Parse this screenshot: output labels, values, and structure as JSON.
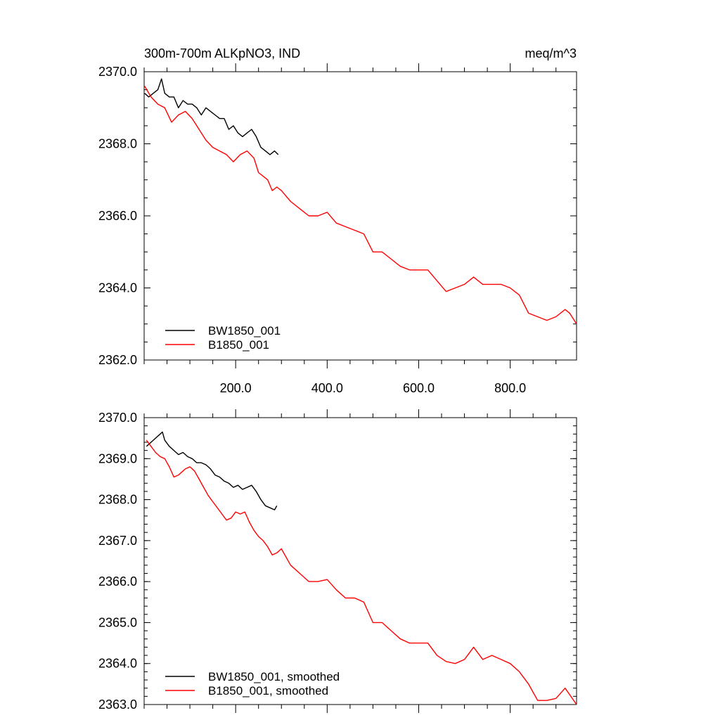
{
  "chart_data": [
    {
      "type": "line",
      "title": "300m-700m ALKpNO3, IND",
      "units": "meq/m^3",
      "xlim": [
        0,
        945
      ],
      "ylim": [
        2362.0,
        2370.0
      ],
      "x_ticks": [
        200.0,
        400.0,
        600.0,
        800.0
      ],
      "x_tick_labels": [
        "200.0",
        "400.0",
        "600.0",
        "800.0"
      ],
      "y_ticks": [
        2362.0,
        2364.0,
        2366.0,
        2368.0,
        2370.0
      ],
      "y_tick_labels": [
        "2362.0",
        "2364.0",
        "2366.0",
        "2368.0",
        "2370.0"
      ],
      "legend_position": "bottom-left",
      "series": [
        {
          "name": "BW1850_001",
          "color": "#000000",
          "x": [
            1,
            10,
            20,
            30,
            38,
            45,
            55,
            65,
            75,
            85,
            95,
            105,
            115,
            125,
            135,
            145,
            155,
            165,
            175,
            185,
            195,
            205,
            215,
            225,
            235,
            245,
            255,
            265,
            275,
            285,
            293
          ],
          "y": [
            2369.4,
            2369.3,
            2369.4,
            2369.5,
            2369.8,
            2369.4,
            2369.3,
            2369.3,
            2369.0,
            2369.2,
            2369.1,
            2369.1,
            2369.0,
            2368.8,
            2369.0,
            2368.9,
            2368.8,
            2368.7,
            2368.7,
            2368.4,
            2368.5,
            2368.3,
            2368.2,
            2368.3,
            2368.4,
            2368.2,
            2367.9,
            2367.8,
            2367.7,
            2367.8,
            2367.7
          ]
        },
        {
          "name": "B1850_001",
          "color": "#ff0000",
          "x": [
            1,
            15,
            30,
            45,
            60,
            75,
            90,
            105,
            120,
            135,
            150,
            165,
            180,
            195,
            210,
            225,
            240,
            250,
            260,
            270,
            280,
            290,
            300,
            320,
            340,
            360,
            380,
            400,
            420,
            440,
            460,
            480,
            500,
            520,
            540,
            560,
            580,
            600,
            620,
            640,
            660,
            680,
            700,
            720,
            740,
            760,
            780,
            800,
            820,
            840,
            860,
            880,
            900,
            920,
            930,
            945
          ],
          "y": [
            2369.6,
            2369.3,
            2369.1,
            2369.0,
            2368.6,
            2368.8,
            2368.9,
            2368.7,
            2368.4,
            2368.1,
            2367.9,
            2367.8,
            2367.7,
            2367.5,
            2367.7,
            2367.8,
            2367.6,
            2367.2,
            2367.1,
            2367.0,
            2366.7,
            2366.8,
            2366.7,
            2366.4,
            2366.2,
            2366.0,
            2366.0,
            2366.1,
            2365.8,
            2365.7,
            2365.6,
            2365.5,
            2365.0,
            2365.0,
            2364.8,
            2364.6,
            2364.5,
            2364.5,
            2364.5,
            2364.2,
            2363.9,
            2364.0,
            2364.1,
            2364.3,
            2364.1,
            2364.1,
            2364.1,
            2364.0,
            2363.8,
            2363.3,
            2363.2,
            2363.1,
            2363.2,
            2363.4,
            2363.3,
            2363.0
          ]
        }
      ]
    },
    {
      "type": "line",
      "xlim": [
        0,
        945
      ],
      "ylim": [
        2363.0,
        2370.0
      ],
      "y_ticks": [
        2363.0,
        2364.0,
        2365.0,
        2366.0,
        2367.0,
        2368.0,
        2369.0,
        2370.0
      ],
      "y_tick_labels": [
        "2363.0",
        "2364.0",
        "2365.0",
        "2366.0",
        "2367.0",
        "2368.0",
        "2369.0",
        "2370.0"
      ],
      "legend_position": "bottom-left",
      "series": [
        {
          "name": "BW1850_001, smoothed",
          "color": "#000000",
          "x": [
            5,
            15,
            25,
            35,
            40,
            45,
            55,
            65,
            75,
            85,
            95,
            105,
            115,
            125,
            135,
            145,
            155,
            165,
            175,
            185,
            195,
            205,
            215,
            225,
            235,
            245,
            255,
            265,
            275,
            285,
            290
          ],
          "y": [
            2369.3,
            2369.4,
            2369.5,
            2369.6,
            2369.65,
            2369.45,
            2369.3,
            2369.2,
            2369.1,
            2369.15,
            2369.05,
            2369.0,
            2368.9,
            2368.9,
            2368.85,
            2368.75,
            2368.6,
            2368.55,
            2368.45,
            2368.4,
            2368.3,
            2368.35,
            2368.25,
            2368.3,
            2368.35,
            2368.2,
            2368.0,
            2367.85,
            2367.8,
            2367.75,
            2367.85
          ]
        },
        {
          "name": "B1850_001, smoothed",
          "color": "#ff0000",
          "x": [
            5,
            15,
            25,
            35,
            45,
            55,
            65,
            75,
            85,
            90,
            100,
            110,
            120,
            130,
            140,
            150,
            160,
            170,
            180,
            190,
            200,
            210,
            220,
            230,
            240,
            250,
            260,
            270,
            280,
            290,
            300,
            320,
            340,
            360,
            380,
            400,
            420,
            440,
            460,
            480,
            500,
            520,
            540,
            560,
            580,
            600,
            620,
            640,
            660,
            680,
            700,
            720,
            740,
            760,
            780,
            800,
            820,
            840,
            860,
            880,
            900,
            920,
            945
          ],
          "y": [
            2369.45,
            2369.3,
            2369.15,
            2369.05,
            2369.0,
            2368.8,
            2368.55,
            2368.6,
            2368.7,
            2368.75,
            2368.8,
            2368.7,
            2368.5,
            2368.3,
            2368.1,
            2367.95,
            2367.8,
            2367.65,
            2367.5,
            2367.55,
            2367.7,
            2367.65,
            2367.7,
            2367.45,
            2367.25,
            2367.1,
            2367.0,
            2366.85,
            2366.65,
            2366.7,
            2366.8,
            2366.4,
            2366.2,
            2366.0,
            2366.0,
            2366.05,
            2365.8,
            2365.6,
            2365.6,
            2365.5,
            2365.0,
            2365.0,
            2364.8,
            2364.6,
            2364.5,
            2364.5,
            2364.5,
            2364.2,
            2364.05,
            2364.0,
            2364.1,
            2364.4,
            2364.1,
            2364.2,
            2364.1,
            2364.0,
            2363.8,
            2363.5,
            2363.1,
            2363.1,
            2363.15,
            2363.4,
            2363.0
          ]
        }
      ]
    }
  ]
}
